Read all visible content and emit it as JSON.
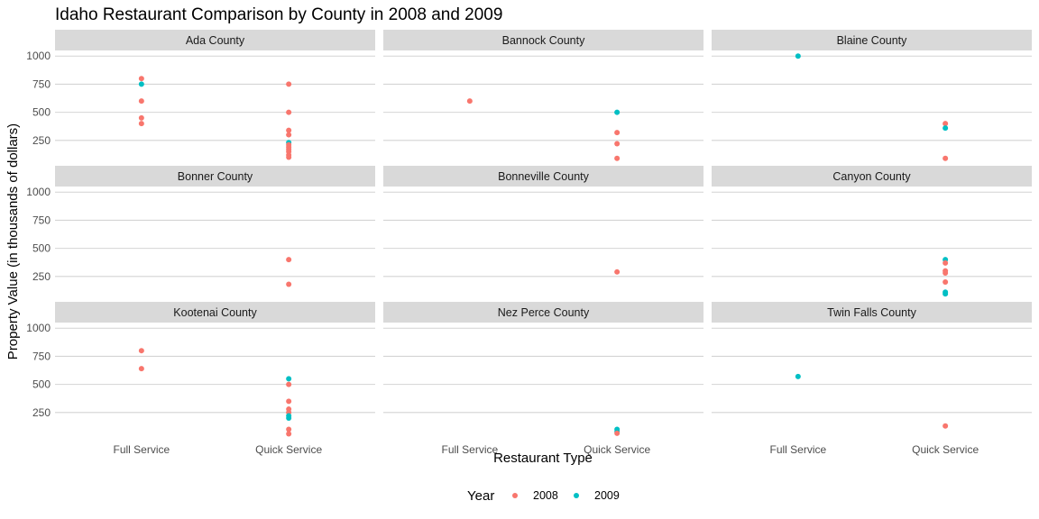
{
  "chart_data": {
    "type": "scatter",
    "title": "Idaho Restaurant Comparison by County in 2008 and 2009",
    "xlabel": "Restaurant Type",
    "ylabel": "Property Value (in thousands of dollars)",
    "categories": [
      "Full Service",
      "Quick Service"
    ],
    "yticks": [
      250,
      500,
      750,
      1000
    ],
    "ylim": [
      40,
      1050
    ],
    "grid": true,
    "legend": {
      "title": "Year",
      "position": "bottom",
      "entries": [
        {
          "label": "2008",
          "color": "#F8766D"
        },
        {
          "label": "2009",
          "color": "#00BFC4"
        }
      ]
    },
    "facets": [
      {
        "name": "Ada County",
        "points": [
          {
            "x": "Full Service",
            "y": 800,
            "year": "2008"
          },
          {
            "x": "Full Service",
            "y": 750,
            "year": "2009"
          },
          {
            "x": "Full Service",
            "y": 600,
            "year": "2008"
          },
          {
            "x": "Full Service",
            "y": 450,
            "year": "2008"
          },
          {
            "x": "Full Service",
            "y": 400,
            "year": "2008"
          },
          {
            "x": "Quick Service",
            "y": 750,
            "year": "2008"
          },
          {
            "x": "Quick Service",
            "y": 500,
            "year": "2008"
          },
          {
            "x": "Quick Service",
            "y": 340,
            "year": "2008"
          },
          {
            "x": "Quick Service",
            "y": 300,
            "year": "2008"
          },
          {
            "x": "Quick Service",
            "y": 230,
            "year": "2009"
          },
          {
            "x": "Quick Service",
            "y": 210,
            "year": "2008"
          },
          {
            "x": "Quick Service",
            "y": 190,
            "year": "2008"
          },
          {
            "x": "Quick Service",
            "y": 170,
            "year": "2008"
          },
          {
            "x": "Quick Service",
            "y": 150,
            "year": "2008"
          },
          {
            "x": "Quick Service",
            "y": 120,
            "year": "2008"
          },
          {
            "x": "Quick Service",
            "y": 100,
            "year": "2008"
          }
        ]
      },
      {
        "name": "Bannock County",
        "points": [
          {
            "x": "Full Service",
            "y": 600,
            "year": "2008"
          },
          {
            "x": "Quick Service",
            "y": 500,
            "year": "2009"
          },
          {
            "x": "Quick Service",
            "y": 320,
            "year": "2008"
          },
          {
            "x": "Quick Service",
            "y": 220,
            "year": "2008"
          },
          {
            "x": "Quick Service",
            "y": 90,
            "year": "2008"
          }
        ]
      },
      {
        "name": "Blaine County",
        "points": [
          {
            "x": "Full Service",
            "y": 1000,
            "year": "2009"
          },
          {
            "x": "Quick Service",
            "y": 400,
            "year": "2008"
          },
          {
            "x": "Quick Service",
            "y": 360,
            "year": "2009"
          },
          {
            "x": "Quick Service",
            "y": 90,
            "year": "2008"
          }
        ]
      },
      {
        "name": "Bonner County",
        "points": [
          {
            "x": "Quick Service",
            "y": 400,
            "year": "2008"
          },
          {
            "x": "Quick Service",
            "y": 180,
            "year": "2008"
          }
        ]
      },
      {
        "name": "Bonneville County",
        "points": [
          {
            "x": "Quick Service",
            "y": 290,
            "year": "2008"
          }
        ]
      },
      {
        "name": "Canyon County",
        "points": [
          {
            "x": "Quick Service",
            "y": 400,
            "year": "2009"
          },
          {
            "x": "Quick Service",
            "y": 370,
            "year": "2008"
          },
          {
            "x": "Quick Service",
            "y": 300,
            "year": "2008"
          },
          {
            "x": "Quick Service",
            "y": 280,
            "year": "2008"
          },
          {
            "x": "Quick Service",
            "y": 200,
            "year": "2008"
          },
          {
            "x": "Quick Service",
            "y": 110,
            "year": "2009"
          },
          {
            "x": "Quick Service",
            "y": 95,
            "year": "2009"
          }
        ]
      },
      {
        "name": "Kootenai County",
        "points": [
          {
            "x": "Full Service",
            "y": 800,
            "year": "2008"
          },
          {
            "x": "Full Service",
            "y": 640,
            "year": "2008"
          },
          {
            "x": "Quick Service",
            "y": 550,
            "year": "2009"
          },
          {
            "x": "Quick Service",
            "y": 500,
            "year": "2008"
          },
          {
            "x": "Quick Service",
            "y": 350,
            "year": "2008"
          },
          {
            "x": "Quick Service",
            "y": 280,
            "year": "2008"
          },
          {
            "x": "Quick Service",
            "y": 250,
            "year": "2008"
          },
          {
            "x": "Quick Service",
            "y": 220,
            "year": "2009"
          },
          {
            "x": "Quick Service",
            "y": 200,
            "year": "2009"
          },
          {
            "x": "Quick Service",
            "y": 100,
            "year": "2008"
          },
          {
            "x": "Quick Service",
            "y": 60,
            "year": "2008"
          }
        ]
      },
      {
        "name": "Nez Perce County",
        "points": [
          {
            "x": "Quick Service",
            "y": 100,
            "year": "2009"
          },
          {
            "x": "Quick Service",
            "y": 80,
            "year": "2009"
          },
          {
            "x": "Quick Service",
            "y": 65,
            "year": "2008"
          }
        ]
      },
      {
        "name": "Twin Falls County",
        "points": [
          {
            "x": "Full Service",
            "y": 570,
            "year": "2009"
          },
          {
            "x": "Quick Service",
            "y": 130,
            "year": "2008"
          }
        ]
      }
    ]
  }
}
